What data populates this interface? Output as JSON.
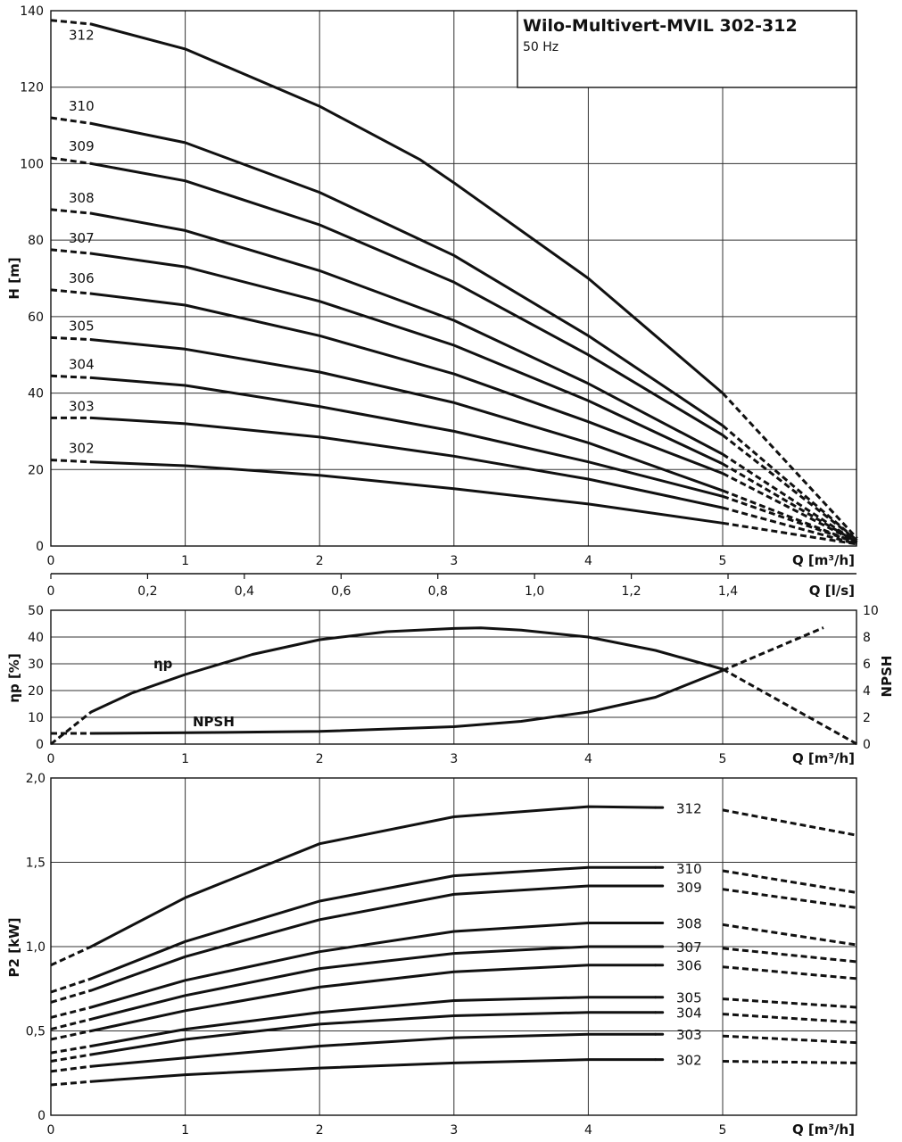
{
  "title": "Wilo-Multivert-MVIL 302-312",
  "subtitle": "50 Hz",
  "chart_data": [
    {
      "type": "line",
      "name": "head",
      "xlabel": "Q [m³/h]",
      "xlabel_secondary": "Q [l/s]",
      "ylabel": "H [m]",
      "xlim": [
        0,
        6
      ],
      "ylim": [
        0,
        140
      ],
      "xticks": [
        "0",
        "1",
        "2",
        "3",
        "4",
        "5"
      ],
      "xticks_secondary": [
        {
          "v": 0,
          "label": "0"
        },
        {
          "v": 0.2,
          "label": "0,2"
        },
        {
          "v": 0.4,
          "label": "0,4"
        },
        {
          "v": 0.6,
          "label": "0,6"
        },
        {
          "v": 0.8,
          "label": "0,8"
        },
        {
          "v": 1.0,
          "label": "1,0"
        },
        {
          "v": 1.2,
          "label": "1,2"
        },
        {
          "v": 1.4,
          "label": "1,4"
        }
      ],
      "yticks": [
        "0",
        "20",
        "40",
        "60",
        "80",
        "100",
        "120",
        "140"
      ],
      "grid": true,
      "series": [
        {
          "name": "312",
          "x": [
            0.3,
            1,
            2,
            2.75,
            3,
            4,
            4.5,
            5
          ],
          "y": [
            136.5,
            130,
            115,
            101,
            95,
            70,
            55,
            40
          ],
          "dashed_until": [
            [
              0,
              137.5
            ],
            [
              0.3,
              136.5
            ]
          ],
          "dashed_after": [
            [
              5,
              40
            ],
            [
              6,
              2
            ]
          ]
        },
        {
          "name": "310",
          "x": [
            0.3,
            1,
            2,
            3,
            4,
            5
          ],
          "y": [
            110.5,
            105.5,
            92.5,
            76,
            55,
            31.5
          ],
          "dashed_until": [
            [
              0,
              112
            ],
            [
              0.3,
              110.5
            ]
          ],
          "dashed_after": [
            [
              5,
              31.5
            ],
            [
              6,
              1.5
            ]
          ]
        },
        {
          "name": "309",
          "x": [
            0.3,
            1,
            2,
            3,
            4,
            5
          ],
          "y": [
            100,
            95.5,
            84,
            69,
            50,
            29
          ],
          "dashed_until": [
            [
              0,
              101.5
            ],
            [
              0.3,
              100
            ]
          ],
          "dashed_after": [
            [
              5,
              29
            ],
            [
              6,
              1.5
            ]
          ]
        },
        {
          "name": "308",
          "x": [
            0.3,
            1,
            2,
            3,
            4,
            5
          ],
          "y": [
            87,
            82.5,
            72,
            59,
            42.5,
            24
          ],
          "dashed_until": [
            [
              0,
              88
            ],
            [
              0.3,
              87
            ]
          ],
          "dashed_after": [
            [
              5,
              24
            ],
            [
              6,
              1
            ]
          ]
        },
        {
          "name": "307",
          "x": [
            0.3,
            1,
            2,
            3,
            4,
            5
          ],
          "y": [
            76.5,
            73,
            64,
            52.5,
            38,
            21.5
          ],
          "dashed_until": [
            [
              0,
              77.5
            ],
            [
              0.3,
              76.5
            ]
          ],
          "dashed_after": [
            [
              5,
              21.5
            ],
            [
              6,
              1
            ]
          ]
        },
        {
          "name": "306",
          "x": [
            0.3,
            1,
            2,
            3,
            4,
            5
          ],
          "y": [
            66,
            63,
            55,
            45,
            32.5,
            19
          ],
          "dashed_until": [
            [
              0,
              67
            ],
            [
              0.3,
              66
            ]
          ],
          "dashed_after": [
            [
              5,
              19
            ],
            [
              6,
              1
            ]
          ]
        },
        {
          "name": "305",
          "x": [
            0.3,
            1,
            2,
            3,
            4,
            5
          ],
          "y": [
            54,
            51.5,
            45.5,
            37.5,
            27,
            14.5
          ],
          "dashed_until": [
            [
              0,
              54.5
            ],
            [
              0.3,
              54
            ]
          ],
          "dashed_after": [
            [
              5,
              14.5
            ],
            [
              6,
              0.8
            ]
          ]
        },
        {
          "name": "304",
          "x": [
            0.3,
            1,
            2,
            3,
            4,
            5
          ],
          "y": [
            44,
            42,
            36.5,
            30,
            22,
            13
          ],
          "dashed_until": [
            [
              0,
              44.5
            ],
            [
              0.3,
              44
            ]
          ],
          "dashed_after": [
            [
              5,
              13
            ],
            [
              6,
              0.8
            ]
          ]
        },
        {
          "name": "303",
          "x": [
            0.3,
            1,
            2,
            3,
            4,
            5
          ],
          "y": [
            33.5,
            32,
            28.5,
            23.5,
            17.5,
            10
          ],
          "dashed_until": [
            [
              0,
              33.5
            ],
            [
              0.3,
              33.5
            ]
          ],
          "dashed_after": [
            [
              5,
              10
            ],
            [
              6,
              0.5
            ]
          ]
        },
        {
          "name": "302",
          "x": [
            0.3,
            1,
            2,
            3,
            4,
            5
          ],
          "y": [
            22,
            21,
            18.5,
            15,
            11,
            6
          ],
          "dashed_until": [
            [
              0,
              22.5
            ],
            [
              0.3,
              22
            ]
          ],
          "dashed_after": [
            [
              5,
              6
            ],
            [
              6,
              0.5
            ]
          ]
        }
      ]
    },
    {
      "type": "line",
      "name": "efficiency-npsh",
      "xlabel": "Q [m³/h]",
      "ylabel": "ηp [%]",
      "ylabel_right": "NPSH",
      "xlim": [
        0,
        6
      ],
      "ylim": [
        0,
        50
      ],
      "ylim_right": [
        0,
        10
      ],
      "xticks": [
        "0",
        "1",
        "2",
        "3",
        "4",
        "5"
      ],
      "yticks": [
        "0",
        "10",
        "20",
        "30",
        "40",
        "50"
      ],
      "yticks_right": [
        "0",
        "2",
        "4",
        "6",
        "8",
        "10"
      ],
      "grid": true,
      "series": [
        {
          "name": "ηp",
          "axis": "left",
          "x": [
            0.3,
            0.6,
            1,
            1.5,
            2,
            2.5,
            3,
            3.2,
            3.5,
            4,
            4.5,
            5
          ],
          "y": [
            12,
            19,
            26,
            33.5,
            39,
            42,
            43.2,
            43.4,
            42.6,
            40,
            35,
            28
          ],
          "dashed_until": [
            [
              0,
              0
            ],
            [
              0.3,
              12
            ]
          ],
          "dashed_after": [
            [
              5,
              28
            ],
            [
              6,
              0
            ]
          ]
        },
        {
          "name": "NPSH",
          "axis": "right",
          "x": [
            0.3,
            1,
            2,
            3,
            3.5,
            4,
            4.5,
            5
          ],
          "y": [
            0.8,
            0.85,
            0.95,
            1.3,
            1.7,
            2.4,
            3.5,
            5.5
          ],
          "dashed_until": [
            [
              0,
              0.8
            ],
            [
              0.3,
              0.8
            ]
          ],
          "dashed_after": [
            [
              5,
              5.5
            ],
            [
              5.75,
              8.7
            ]
          ]
        }
      ]
    },
    {
      "type": "line",
      "name": "power",
      "xlabel": "Q [m³/h]",
      "ylabel": "P2 [kW]",
      "xlim": [
        0,
        6
      ],
      "ylim": [
        0,
        2.0
      ],
      "xticks": [
        "0",
        "1",
        "2",
        "3",
        "4",
        "5"
      ],
      "yticks": [
        "0",
        "0,5",
        "1,0",
        "1,5",
        "2,0"
      ],
      "grid": true,
      "series": [
        {
          "name": "312",
          "x": [
            0.3,
            1,
            2,
            3,
            4,
            4.5
          ],
          "y": [
            1.0,
            1.29,
            1.61,
            1.77,
            1.83,
            1.825
          ],
          "dashed_until": [
            [
              0,
              0.89
            ],
            [
              0.3,
              1.0
            ]
          ],
          "dashed_after": [
            [
              5,
              1.81
            ],
            [
              6,
              1.66
            ]
          ]
        },
        {
          "name": "310",
          "x": [
            0.3,
            1,
            2,
            3,
            4,
            4.5
          ],
          "y": [
            0.81,
            1.03,
            1.27,
            1.42,
            1.47,
            1.47
          ],
          "dashed_until": [
            [
              0,
              0.73
            ],
            [
              0.3,
              0.81
            ]
          ],
          "dashed_after": [
            [
              5,
              1.45
            ],
            [
              6,
              1.32
            ]
          ]
        },
        {
          "name": "309",
          "x": [
            0.3,
            1,
            2,
            3,
            4,
            4.5
          ],
          "y": [
            0.74,
            0.94,
            1.16,
            1.31,
            1.36,
            1.36
          ],
          "dashed_until": [
            [
              0,
              0.67
            ],
            [
              0.3,
              0.74
            ]
          ],
          "dashed_after": [
            [
              5,
              1.34
            ],
            [
              6,
              1.23
            ]
          ]
        },
        {
          "name": "308",
          "x": [
            0.3,
            1,
            2,
            3,
            4,
            4.5
          ],
          "y": [
            0.64,
            0.8,
            0.97,
            1.09,
            1.14,
            1.14
          ],
          "dashed_until": [
            [
              0,
              0.58
            ],
            [
              0.3,
              0.64
            ]
          ],
          "dashed_after": [
            [
              5,
              1.13
            ],
            [
              6,
              1.01
            ]
          ]
        },
        {
          "name": "307",
          "x": [
            0.3,
            1,
            2,
            3,
            4,
            4.5
          ],
          "y": [
            0.57,
            0.71,
            0.87,
            0.96,
            1.0,
            1.0
          ],
          "dashed_until": [
            [
              0,
              0.51
            ],
            [
              0.3,
              0.57
            ]
          ],
          "dashed_after": [
            [
              5,
              0.99
            ],
            [
              6,
              0.91
            ]
          ]
        },
        {
          "name": "306",
          "x": [
            0.3,
            1,
            2,
            3,
            4,
            4.5
          ],
          "y": [
            0.5,
            0.62,
            0.76,
            0.85,
            0.89,
            0.89
          ],
          "dashed_until": [
            [
              0,
              0.45
            ],
            [
              0.3,
              0.5
            ]
          ],
          "dashed_after": [
            [
              5,
              0.88
            ],
            [
              6,
              0.81
            ]
          ]
        },
        {
          "name": "305",
          "x": [
            0.3,
            1,
            2,
            3,
            4,
            4.5
          ],
          "y": [
            0.41,
            0.51,
            0.61,
            0.68,
            0.7,
            0.7
          ],
          "dashed_until": [
            [
              0,
              0.37
            ],
            [
              0.3,
              0.41
            ]
          ],
          "dashed_after": [
            [
              5,
              0.69
            ],
            [
              6,
              0.64
            ]
          ]
        },
        {
          "name": "304",
          "x": [
            0.3,
            1,
            2,
            3,
            4,
            4.5
          ],
          "y": [
            0.36,
            0.45,
            0.54,
            0.59,
            0.61,
            0.61
          ],
          "dashed_until": [
            [
              0,
              0.32
            ],
            [
              0.3,
              0.36
            ]
          ],
          "dashed_after": [
            [
              5,
              0.6
            ],
            [
              6,
              0.55
            ]
          ]
        },
        {
          "name": "303",
          "x": [
            0.3,
            1,
            2,
            3,
            4,
            4.5
          ],
          "y": [
            0.29,
            0.34,
            0.41,
            0.46,
            0.48,
            0.48
          ],
          "dashed_until": [
            [
              0,
              0.26
            ],
            [
              0.3,
              0.29
            ]
          ],
          "dashed_after": [
            [
              5,
              0.47
            ],
            [
              6,
              0.43
            ]
          ]
        },
        {
          "name": "302",
          "x": [
            0.3,
            1,
            2,
            3,
            4,
            4.5
          ],
          "y": [
            0.2,
            0.24,
            0.28,
            0.31,
            0.33,
            0.33
          ],
          "dashed_until": [
            [
              0,
              0.18
            ],
            [
              0.3,
              0.2
            ]
          ],
          "dashed_after": [
            [
              5,
              0.32
            ],
            [
              6,
              0.31
            ]
          ]
        }
      ]
    }
  ]
}
